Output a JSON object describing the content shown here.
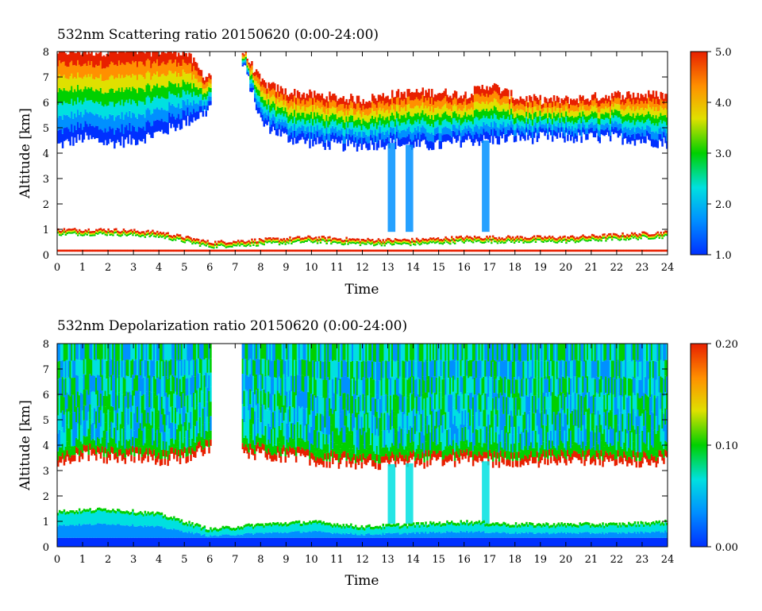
{
  "chart_data": [
    {
      "type": "heatmap",
      "title": "532nm Scattering ratio  20150620 (0:00-24:00)",
      "xlabel": "Time",
      "ylabel": "Altitude [km]",
      "xlim": [
        0,
        24
      ],
      "ylim": [
        0,
        8
      ],
      "x_ticks": [
        "0",
        "1",
        "2",
        "3",
        "4",
        "5",
        "6",
        "7",
        "8",
        "9",
        "10",
        "11",
        "12",
        "13",
        "14",
        "15",
        "16",
        "17",
        "18",
        "19",
        "20",
        "21",
        "22",
        "23",
        "24"
      ],
      "y_ticks": [
        "0",
        "1",
        "2",
        "3",
        "4",
        "5",
        "6",
        "7",
        "8"
      ],
      "colorbar": {
        "range": [
          1.0,
          5.0
        ],
        "labels": [
          "1.0",
          "2.0",
          "3.0",
          "4.0",
          "5.0"
        ]
      },
      "colormap": [
        "#0030ff",
        "#0090ff",
        "#00e0e0",
        "#00d000",
        "#e0e000",
        "#ff9000",
        "#e82000"
      ],
      "features": {
        "upper_cloud_base_km": [
          [
            0,
            4.3
          ],
          [
            1,
            4.6
          ],
          [
            2,
            4.4
          ],
          [
            3,
            4.5
          ],
          [
            4,
            4.8
          ],
          [
            5,
            5.2
          ],
          [
            5.8,
            5.6
          ],
          [
            7.3,
            7.5
          ],
          [
            8,
            5.2
          ],
          [
            9,
            4.6
          ],
          [
            10,
            4.4
          ],
          [
            11,
            4.3
          ],
          [
            12,
            4.3
          ],
          [
            13,
            4.4
          ],
          [
            14,
            4.3
          ],
          [
            15,
            4.3
          ],
          [
            16,
            4.5
          ],
          [
            17,
            4.5
          ],
          [
            18,
            4.6
          ],
          [
            19,
            4.6
          ],
          [
            20,
            4.6
          ],
          [
            21,
            4.6
          ],
          [
            22,
            4.6
          ],
          [
            23,
            4.5
          ],
          [
            24,
            4.4
          ]
        ],
        "upper_cloud_top_km": [
          [
            0,
            8
          ],
          [
            5,
            8
          ],
          [
            5.8,
            7.0
          ],
          [
            7.3,
            8
          ],
          [
            8,
            6.8
          ],
          [
            9,
            6.4
          ],
          [
            10,
            6.3
          ],
          [
            11,
            6.2
          ],
          [
            12,
            6.1
          ],
          [
            13,
            6.3
          ],
          [
            14,
            6.4
          ],
          [
            15,
            6.4
          ],
          [
            16,
            6.3
          ],
          [
            17,
            6.7
          ],
          [
            18,
            6.2
          ],
          [
            19,
            6.1
          ],
          [
            20,
            6.1
          ],
          [
            21,
            6.2
          ],
          [
            22,
            6.3
          ],
          [
            23,
            6.3
          ],
          [
            24,
            6.3
          ]
        ],
        "data_gap_hours": [
          6.0,
          7.2
        ],
        "boundary_layer_top_km": [
          [
            0,
            1.0
          ],
          [
            2,
            1.0
          ],
          [
            4,
            0.9
          ],
          [
            6,
            0.5
          ],
          [
            8,
            0.6
          ],
          [
            10,
            0.7
          ],
          [
            12,
            0.6
          ],
          [
            14,
            0.6
          ],
          [
            16,
            0.7
          ],
          [
            18,
            0.7
          ],
          [
            20,
            0.7
          ],
          [
            22,
            0.8
          ],
          [
            24,
            0.9
          ]
        ],
        "fall_streaks_hours": [
          13.0,
          13.7,
          16.7
        ]
      }
    },
    {
      "type": "heatmap",
      "title": "532nm Depolarization ratio  20150620 (0:00-24:00)",
      "xlabel": "Time",
      "ylabel": "Altitude [km]",
      "xlim": [
        0,
        24
      ],
      "ylim": [
        0,
        8
      ],
      "x_ticks": [
        "0",
        "1",
        "2",
        "3",
        "4",
        "5",
        "6",
        "7",
        "8",
        "9",
        "10",
        "11",
        "12",
        "13",
        "14",
        "15",
        "16",
        "17",
        "18",
        "19",
        "20",
        "21",
        "22",
        "23",
        "24"
      ],
      "y_ticks": [
        "0",
        "1",
        "2",
        "3",
        "4",
        "5",
        "6",
        "7",
        "8"
      ],
      "colorbar": {
        "range": [
          0.0,
          0.2
        ],
        "labels": [
          "0.00",
          "0.10",
          "0.20"
        ]
      },
      "colormap": [
        "#0030ff",
        "#0090ff",
        "#00e0e0",
        "#00d000",
        "#e0e000",
        "#ff9000",
        "#e82000"
      ],
      "features": {
        "upper_cloud_base_km": [
          [
            0,
            3.4
          ],
          [
            1,
            3.6
          ],
          [
            2,
            3.5
          ],
          [
            3,
            3.5
          ],
          [
            4,
            3.4
          ],
          [
            5,
            3.5
          ],
          [
            5.8,
            3.8
          ],
          [
            7.3,
            3.7
          ],
          [
            8,
            3.6
          ],
          [
            10,
            3.4
          ],
          [
            12,
            3.2
          ],
          [
            14,
            3.3
          ],
          [
            16,
            3.4
          ],
          [
            18,
            3.3
          ],
          [
            20,
            3.4
          ],
          [
            22,
            3.3
          ],
          [
            24,
            3.4
          ]
        ],
        "data_gap_hours": [
          6.0,
          7.2
        ],
        "boundary_layer_top_km": [
          [
            0,
            1.4
          ],
          [
            2,
            1.5
          ],
          [
            4,
            1.3
          ],
          [
            6,
            0.7
          ],
          [
            8,
            0.9
          ],
          [
            10,
            1.0
          ],
          [
            12,
            0.8
          ],
          [
            14,
            0.9
          ],
          [
            16,
            1.0
          ],
          [
            18,
            0.9
          ],
          [
            20,
            0.9
          ],
          [
            22,
            0.9
          ],
          [
            24,
            1.0
          ]
        ],
        "fall_streaks_hours": [
          13.0,
          13.7,
          16.7
        ]
      }
    }
  ]
}
